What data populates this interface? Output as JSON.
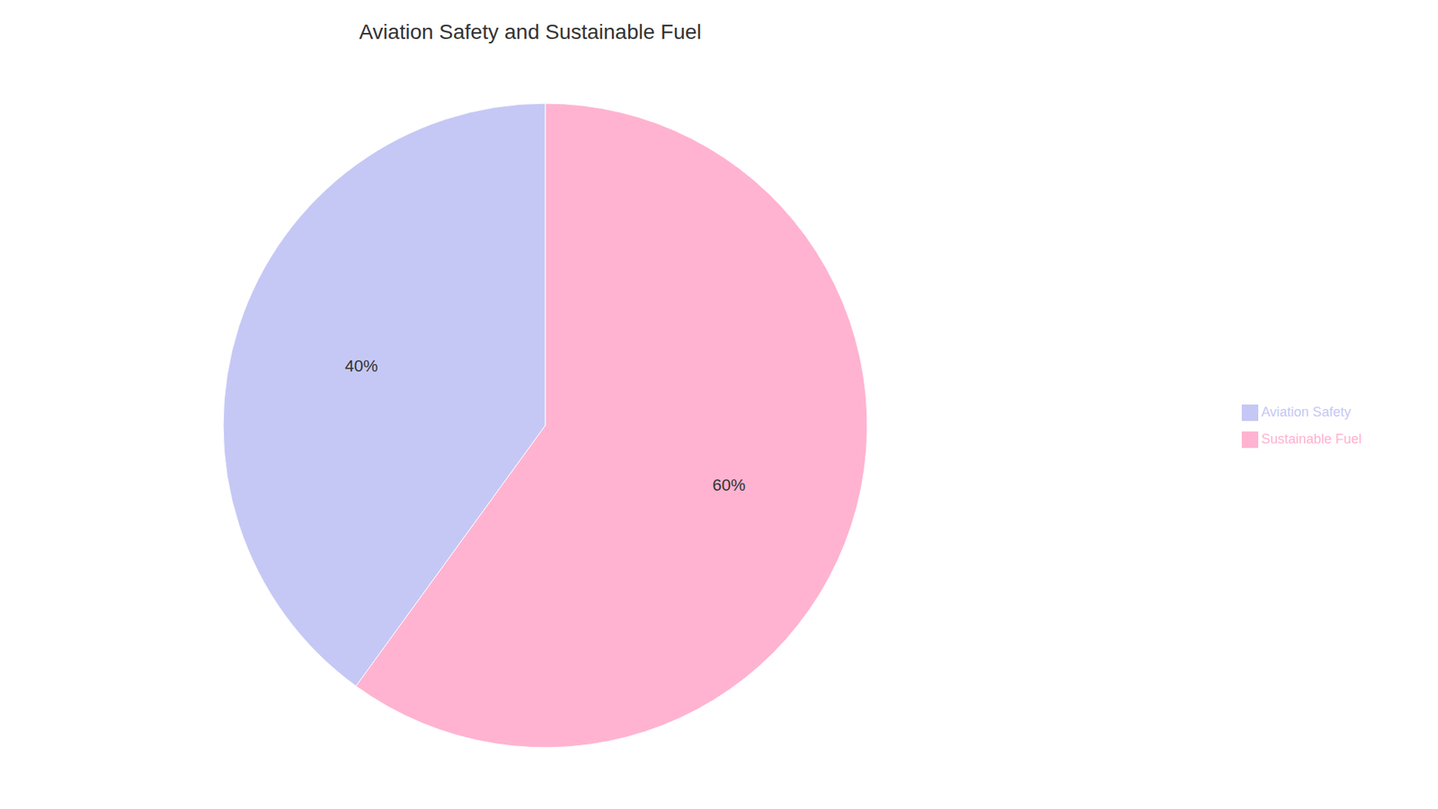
{
  "chart_data": {
    "type": "pie",
    "title": "Aviation Safety and Sustainable Fuel",
    "categories": [
      "Sustainable Fuel",
      "Aviation Safety"
    ],
    "values": [
      60,
      40
    ],
    "value_labels": [
      "60%",
      "40%"
    ],
    "colors": [
      "#FFB3D1",
      "#C5C8F5"
    ],
    "data_labels": true,
    "legend": "right"
  }
}
